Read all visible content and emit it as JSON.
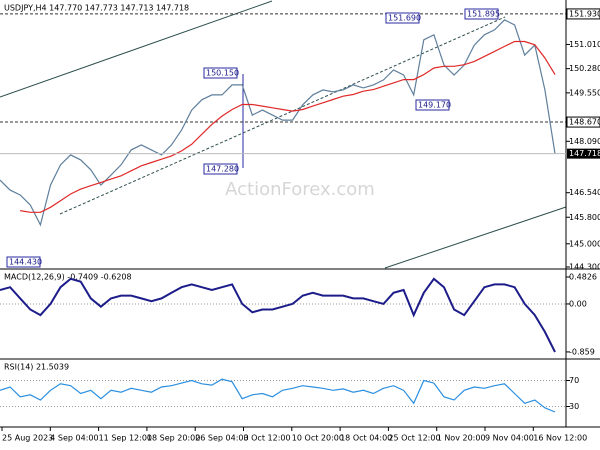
{
  "header": {
    "title": "USDJPY,H4  147.770 147.773 147.713 147.718",
    "watermark": "ActionForex.com"
  },
  "x_axis": {
    "labels": [
      "25 Aug 2023",
      "4 Sep 04:00",
      "11 Sep 12:00",
      "18 Sep 20:00",
      "26 Sep 04:00",
      "3 Oct 12:00",
      "10 Oct 20:00",
      "18 Oct 04:00",
      "25 Oct 12:00",
      "1 Nov 20:00",
      "9 Nov 04:00",
      "16 Nov 12:00"
    ]
  },
  "chart_data": [
    {
      "type": "line",
      "ylim": [
        144.27,
        152.35
      ],
      "yticks": [
        {
          "value": 151.93,
          "label": "151.930"
        },
        {
          "value": 151.01,
          "label": "151.010"
        },
        {
          "value": 150.28,
          "label": "150.280"
        },
        {
          "value": 149.55,
          "label": "149.550"
        },
        {
          "value": 148.67,
          "label": "148.670"
        },
        {
          "value": 148.09,
          "label": "148.090"
        },
        {
          "value": 146.54,
          "label": "146.540"
        },
        {
          "value": 145.8,
          "label": "145.800"
        },
        {
          "value": 145,
          "label": "145.000"
        },
        {
          "value": 144.3,
          "label": "144.300"
        }
      ],
      "levels": [
        151.93,
        148.67
      ],
      "last_price": {
        "value": 147.718,
        "label": "147.718"
      },
      "annotations": [
        "151.690",
        "151.895",
        "150.150",
        "149.170",
        "147.280",
        "144.430"
      ],
      "series": [
        {
          "color": "#5f7f9c",
          "values": [
            146.92,
            146.62,
            146.47,
            146.17,
            145.57,
            146.77,
            147.38,
            147.68,
            147.53,
            147.23,
            146.77,
            147.07,
            147.38,
            147.83,
            147.98,
            147.83,
            147.68,
            147.98,
            148.43,
            149.03,
            149.34,
            149.49,
            149.49,
            149.79,
            149.79,
            148.88,
            149.03,
            148.88,
            148.73,
            148.73,
            149.19,
            149.49,
            149.64,
            149.58,
            149.64,
            149.79,
            149.7,
            149.79,
            149.94,
            150.24,
            150.09,
            149.49,
            151.15,
            151.3,
            150.39,
            150.09,
            150.39,
            150.99,
            151.3,
            151.45,
            151.75,
            151.6,
            150.69,
            150.99,
            149.64,
            147.718
          ]
        },
        {
          "color": "#e02828",
          "values": [
            null,
            null,
            146.0,
            145.95,
            145.95,
            146.1,
            146.3,
            146.5,
            146.65,
            146.75,
            146.85,
            146.95,
            147.05,
            147.2,
            147.35,
            147.45,
            147.55,
            147.65,
            147.8,
            148.0,
            148.3,
            148.6,
            148.85,
            149.05,
            149.2,
            149.2,
            149.15,
            149.1,
            149.05,
            149.0,
            149.05,
            149.15,
            149.25,
            149.35,
            149.45,
            149.5,
            149.6,
            149.65,
            149.75,
            149.85,
            149.95,
            149.95,
            150.1,
            150.3,
            150.35,
            150.35,
            150.4,
            150.5,
            150.65,
            150.8,
            150.95,
            151.1,
            151.1,
            151.0,
            150.6,
            150.1
          ]
        }
      ]
    },
    {
      "type": "line",
      "title": "MACD(12,26,9) -0.7409 -0.6208",
      "ylim": [
        -0.95,
        0.59
      ],
      "yticks": [
        0.4826,
        {
          "value": 0,
          "label": "0.00"
        },
        -0.859
      ],
      "levels": [
        0
      ],
      "series": [
        {
          "color": "#1c1c8a",
          "values": [
            0.25,
            0.3,
            0.1,
            -0.1,
            -0.2,
            0.0,
            0.3,
            0.45,
            0.4,
            0.1,
            -0.05,
            0.1,
            0.15,
            0.15,
            0.1,
            0.05,
            0.1,
            0.2,
            0.3,
            0.35,
            0.3,
            0.25,
            0.3,
            0.35,
            0.0,
            -0.15,
            -0.1,
            -0.1,
            -0.05,
            0.0,
            0.15,
            0.2,
            0.15,
            0.15,
            0.15,
            0.1,
            0.1,
            0.05,
            0.0,
            0.2,
            0.25,
            -0.2,
            0.2,
            0.45,
            0.3,
            -0.1,
            -0.2,
            0.05,
            0.3,
            0.35,
            0.35,
            0.3,
            0.0,
            -0.2,
            -0.5,
            -0.86
          ]
        }
      ]
    },
    {
      "type": "line",
      "title": "RSI(14) 21.5039",
      "ylim": [
        0,
        100
      ],
      "yticks": [
        70,
        30
      ],
      "levels": [
        70,
        30
      ],
      "series": [
        {
          "color": "#2b8fe0",
          "values": [
            55,
            60,
            45,
            48,
            40,
            55,
            65,
            62,
            50,
            55,
            42,
            55,
            52,
            58,
            55,
            52,
            60,
            62,
            66,
            70,
            65,
            63,
            72,
            68,
            42,
            48,
            50,
            45,
            55,
            58,
            62,
            60,
            58,
            55,
            57,
            52,
            55,
            50,
            58,
            62,
            55,
            35,
            70,
            66,
            45,
            40,
            55,
            60,
            58,
            62,
            65,
            50,
            35,
            40,
            28,
            21.5039
          ]
        }
      ]
    }
  ]
}
